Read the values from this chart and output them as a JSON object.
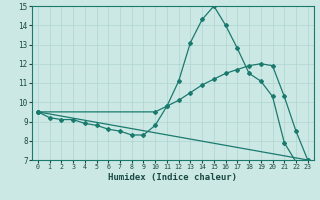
{
  "xlabel": "Humidex (Indice chaleur)",
  "bg_color": "#cce8e4",
  "grid_color": "#b0d4d0",
  "line_color": "#1a7a6e",
  "xlim": [
    -0.5,
    23.5
  ],
  "ylim": [
    7,
    15
  ],
  "xticks": [
    0,
    1,
    2,
    3,
    4,
    5,
    6,
    7,
    8,
    9,
    10,
    11,
    12,
    13,
    14,
    15,
    16,
    17,
    18,
    19,
    20,
    21,
    22,
    23
  ],
  "yticks": [
    7,
    8,
    9,
    10,
    11,
    12,
    13,
    14,
    15
  ],
  "lines": [
    {
      "x": [
        0,
        1,
        2,
        3,
        4,
        5,
        6,
        7,
        8,
        9,
        10,
        11,
        12,
        13,
        14,
        15,
        16,
        17,
        18,
        19,
        20,
        21,
        22,
        23
      ],
      "y": [
        9.5,
        9.2,
        9.1,
        9.1,
        8.9,
        8.8,
        8.6,
        8.5,
        8.3,
        8.3,
        8.8,
        9.8,
        11.1,
        13.1,
        14.3,
        15.0,
        14.0,
        12.8,
        11.5,
        11.1,
        10.3,
        7.9,
        6.9,
        6.9
      ]
    },
    {
      "x": [
        0,
        10,
        11,
        12,
        13,
        14,
        15,
        16,
        17,
        18,
        19,
        20,
        21,
        22,
        23
      ],
      "y": [
        9.5,
        9.5,
        9.8,
        10.1,
        10.5,
        10.9,
        11.2,
        11.5,
        11.7,
        11.9,
        12.0,
        11.9,
        10.3,
        8.5,
        7.0
      ]
    },
    {
      "x": [
        0,
        23
      ],
      "y": [
        9.5,
        7.0
      ]
    }
  ]
}
